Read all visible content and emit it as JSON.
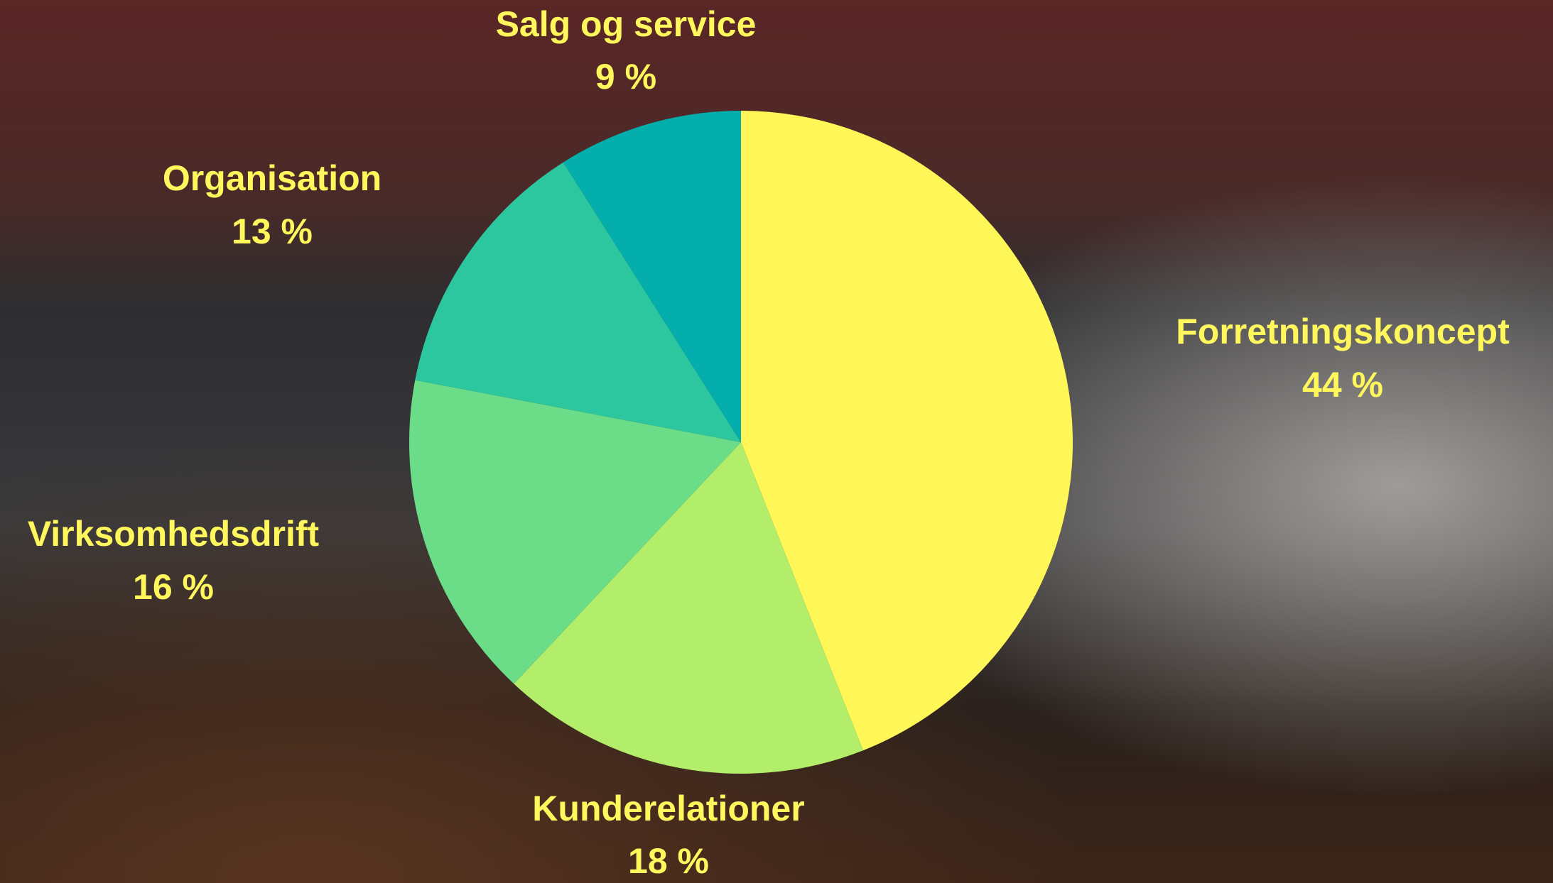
{
  "chart_data": {
    "type": "pie",
    "categories": [
      "Forretningskoncept",
      "Kunderelationer",
      "Virksomhedsdrift",
      "Organisation",
      "Salg og service"
    ],
    "values": [
      44,
      18,
      16,
      13,
      9
    ],
    "value_labels": [
      "44 %",
      "18 %",
      "16 %",
      "13 %",
      "9 %"
    ],
    "colors": [
      "#fff757",
      "#b2ee6a",
      "#6bdd88",
      "#2dc79f",
      "#03aeac"
    ]
  }
}
